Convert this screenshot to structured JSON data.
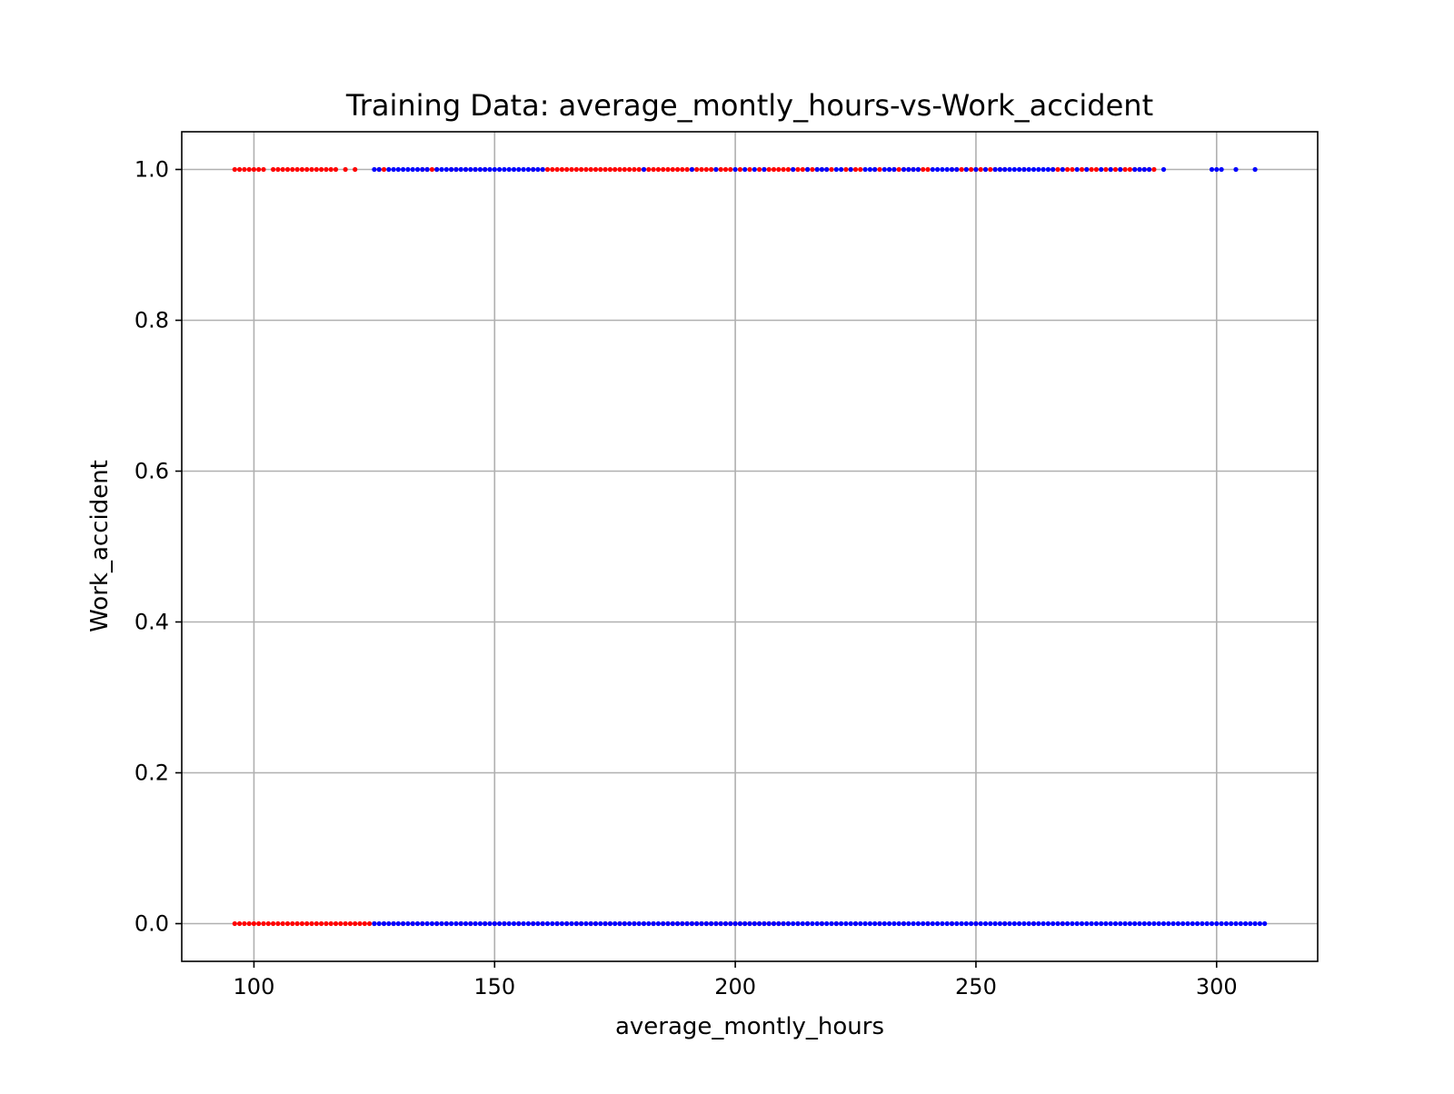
{
  "chart_data": {
    "type": "scatter",
    "title": "Training Data: average_montly_hours-vs-Work_accident",
    "xlabel": "average_montly_hours",
    "ylabel": "Work_accident",
    "xlim": [
      85,
      321
    ],
    "ylim": [
      -0.05,
      1.05
    ],
    "xticks": [
      100,
      150,
      200,
      250,
      300
    ],
    "xtick_labels": [
      "100",
      "150",
      "200",
      "250",
      "300"
    ],
    "yticks": [
      0.0,
      0.2,
      0.4,
      0.6,
      0.8,
      1.0
    ],
    "ytick_labels": [
      "0.0",
      "0.2",
      "0.4",
      "0.6",
      "0.8",
      "1.0"
    ],
    "grid": true,
    "series": [
      {
        "color": "#ff0000",
        "points": [
          {
            "y": 1,
            "x": [
              96,
              97,
              98,
              99,
              100,
              101,
              102,
              104,
              105,
              106,
              107,
              108,
              109,
              110,
              111,
              112,
              113,
              114,
              115,
              116,
              117,
              119,
              121,
              126,
              127,
              135,
              136,
              137,
              138,
              141,
              142,
              144,
              146,
              148,
              158,
              160,
              161,
              162,
              163,
              164,
              165,
              166,
              167,
              168,
              169,
              170,
              171,
              172,
              173,
              174,
              175,
              176,
              177,
              178,
              179,
              180,
              181,
              182,
              183,
              184,
              185,
              186,
              187,
              188,
              189,
              190,
              191,
              192,
              193,
              194,
              195,
              196,
              197,
              198,
              199,
              201,
              203,
              205,
              206,
              207,
              208,
              209,
              210,
              211,
              212,
              213,
              214,
              215,
              216,
              217,
              218,
              219,
              220,
              223,
              224,
              225,
              226,
              229,
              230,
              232,
              233,
              234,
              235,
              236,
              237,
              238,
              239,
              240,
              245,
              246,
              247,
              248,
              249,
              250,
              251,
              252,
              253,
              254,
              255,
              256,
              260,
              266,
              267,
              268,
              269,
              270,
              272,
              273,
              274,
              275,
              277,
              278,
              279,
              280,
              281,
              282,
              283,
              284,
              285,
              286,
              287
            ]
          },
          {
            "y": 0,
            "x": [
              96,
              97,
              98,
              99,
              100,
              101,
              102,
              103,
              104,
              105,
              106,
              107,
              108,
              109,
              110,
              111,
              112,
              113,
              114,
              115,
              116,
              117,
              118,
              119,
              120,
              121,
              122,
              123,
              124,
              125,
              127,
              129,
              131,
              133,
              135,
              138,
              140,
              143,
              145,
              148,
              150,
              152,
              155,
              158,
              160,
              163,
              165,
              167,
              168,
              170,
              171,
              173,
              174,
              176,
              177,
              179,
              181,
              183,
              185,
              186,
              187,
              188,
              189,
              190,
              191,
              192,
              193,
              194,
              195,
              196,
              197,
              198,
              199,
              200,
              201,
              202,
              203,
              204,
              205,
              206,
              207,
              208,
              209,
              210,
              211,
              213,
              215,
              218,
              221,
              225,
              230,
              235,
              240,
              245,
              250,
              256,
              262,
              268
            ]
          }
        ]
      },
      {
        "color": "#0000ff",
        "points": [
          {
            "y": 1,
            "x": [
              125,
              126,
              128,
              129,
              130,
              131,
              132,
              133,
              134,
              135,
              136,
              138,
              139,
              140,
              141,
              142,
              143,
              144,
              145,
              146,
              147,
              148,
              149,
              150,
              151,
              152,
              153,
              154,
              155,
              156,
              157,
              158,
              159,
              160,
              181,
              191,
              196,
              200,
              202,
              204,
              206,
              212,
              215,
              217,
              218,
              219,
              221,
              222,
              224,
              227,
              228,
              229,
              231,
              232,
              233,
              235,
              236,
              237,
              238,
              241,
              242,
              243,
              244,
              245,
              246,
              248,
              250,
              252,
              254,
              255,
              256,
              257,
              258,
              259,
              260,
              261,
              262,
              263,
              264,
              265,
              266,
              268,
              271,
              273,
              276,
              278,
              280,
              283,
              284,
              285,
              286,
              289,
              299,
              300,
              301,
              304,
              308
            ]
          },
          {
            "y": 0,
            "x": [
              125,
              126,
              127,
              128,
              129,
              130,
              131,
              132,
              133,
              134,
              135,
              136,
              137,
              138,
              139,
              140,
              141,
              142,
              143,
              144,
              145,
              146,
              147,
              148,
              149,
              150,
              151,
              152,
              153,
              154,
              155,
              156,
              157,
              158,
              159,
              160,
              161,
              162,
              163,
              164,
              165,
              166,
              167,
              168,
              169,
              170,
              171,
              172,
              173,
              174,
              175,
              176,
              177,
              178,
              179,
              180,
              181,
              182,
              183,
              184,
              185,
              186,
              187,
              188,
              189,
              190,
              191,
              192,
              193,
              194,
              195,
              196,
              197,
              198,
              199,
              200,
              201,
              202,
              203,
              204,
              205,
              206,
              207,
              208,
              209,
              210,
              211,
              212,
              213,
              214,
              215,
              216,
              217,
              218,
              219,
              220,
              221,
              222,
              223,
              224,
              225,
              226,
              227,
              228,
              229,
              230,
              231,
              232,
              233,
              234,
              235,
              236,
              237,
              238,
              239,
              240,
              241,
              242,
              243,
              244,
              245,
              246,
              247,
              248,
              249,
              250,
              251,
              252,
              253,
              254,
              255,
              256,
              257,
              258,
              259,
              260,
              261,
              262,
              263,
              264,
              265,
              266,
              267,
              268,
              269,
              270,
              271,
              272,
              273,
              274,
              275,
              276,
              277,
              278,
              279,
              280,
              281,
              282,
              283,
              284,
              285,
              286,
              287,
              288,
              289,
              290,
              291,
              292,
              293,
              294,
              295,
              296,
              297,
              298,
              299,
              300,
              301,
              302,
              303,
              304,
              305,
              306,
              307,
              308,
              309,
              310
            ]
          }
        ]
      }
    ]
  }
}
